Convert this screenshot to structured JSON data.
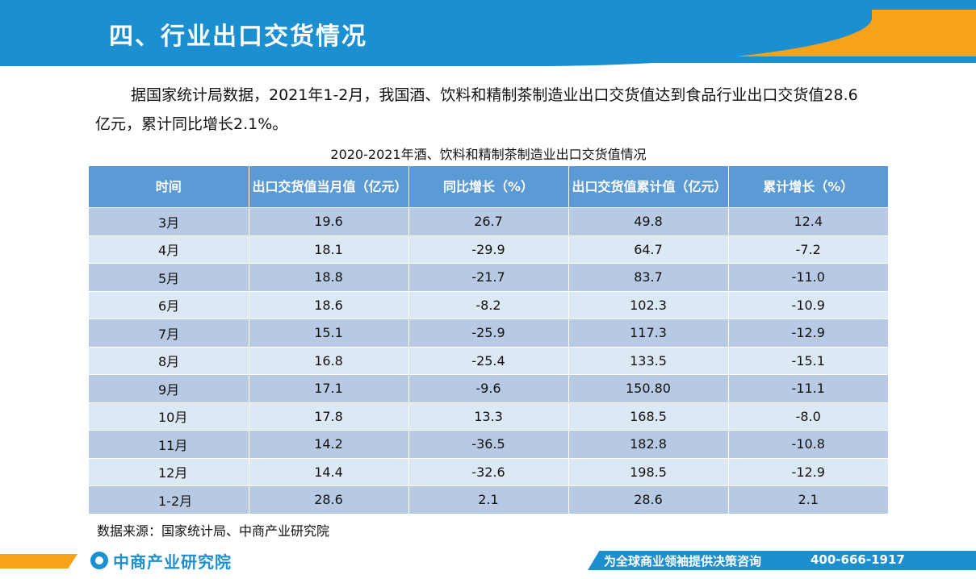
{
  "header": {
    "title": "四、行业出口交货情况"
  },
  "intro": {
    "text": "据国家统计局数据，2021年1-2月，我国酒、饮料和精制茶制造业出口交货值达到食品行业出口交货值28.6亿元，累计同比增长2.1%。"
  },
  "table": {
    "title": "2020-2021年酒、饮料和精制茶制造业出口交货值情况",
    "headers": [
      "时间",
      "出口交货值当月值（亿元）",
      "同比增长（%）",
      "出口交货值累计值（亿元）",
      "累计增长（%）"
    ],
    "rows": [
      [
        "3月",
        "19.6",
        "26.7",
        "49.8",
        "12.4"
      ],
      [
        "4月",
        "18.1",
        "-29.9",
        "64.7",
        "-7.2"
      ],
      [
        "5月",
        "18.8",
        "-21.7",
        "83.7",
        "-11.0"
      ],
      [
        "6月",
        "18.6",
        "-8.2",
        "102.3",
        "-10.9"
      ],
      [
        "7月",
        "15.1",
        "-25.9",
        "117.3",
        "-12.9"
      ],
      [
        "8月",
        "16.8",
        "-25.4",
        "133.5",
        "-15.1"
      ],
      [
        "9月",
        "17.1",
        "-9.6",
        "150.80",
        "-11.1"
      ],
      [
        "10月",
        "17.8",
        "13.3",
        "168.5",
        "-8.0"
      ],
      [
        "11月",
        "14.2",
        "-36.5",
        "182.8",
        "-10.8"
      ],
      [
        "12月",
        "14.4",
        "-32.6",
        "198.5",
        "-12.9"
      ],
      [
        "1-2月",
        "28.6",
        "2.1",
        "28.6",
        "2.1"
      ]
    ]
  },
  "source": "数据来源：国家统计局、中商产业研究院",
  "footer": {
    "logo_text": "中商产业研究院",
    "slogan": "为全球商业领袖提供决策咨询",
    "phone": "400-666-1917"
  },
  "colors": {
    "brand_blue": "#1b8fd0",
    "brand_orange": "#f6a21a",
    "table_header": "#5b9bd5",
    "row_dark": "#b7c9e3",
    "row_light": "#dde8f5"
  }
}
